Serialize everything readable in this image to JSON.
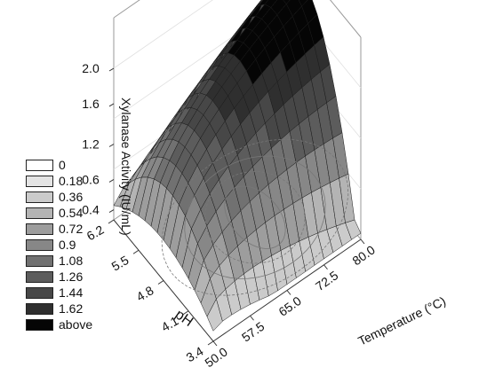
{
  "chart_data": {
    "type": "surface",
    "zlabel": "Xylanase Activity (IU/mL)",
    "xlabel": "Temperature (°C)",
    "ylabel": "pH",
    "x_ticks": [
      "50.0",
      "57.5",
      "65.0",
      "72.5",
      "80.0"
    ],
    "y_ticks": [
      "3.4",
      "4.1",
      "4.8",
      "5.5",
      "6.2"
    ],
    "z_ticks": [
      "0.4",
      "0.6",
      "1.2",
      "1.6",
      "2.0"
    ],
    "xlim": [
      50.0,
      80.0
    ],
    "ylim": [
      3.4,
      6.2
    ],
    "zlim": [
      0.3,
      2.3
    ],
    "legend": {
      "placement": "left",
      "items": [
        {
          "label": "0",
          "color": "#ffffff"
        },
        {
          "label": "0.18",
          "color": "#e4e4e4"
        },
        {
          "label": "0.36",
          "color": "#cbcbcb"
        },
        {
          "label": "0.54",
          "color": "#b4b4b4"
        },
        {
          "label": "0.72",
          "color": "#9d9d9d"
        },
        {
          "label": "0.9",
          "color": "#878787"
        },
        {
          "label": "1.08",
          "color": "#717171"
        },
        {
          "label": "1.26",
          "color": "#5c5c5c"
        },
        {
          "label": "1.44",
          "color": "#474747"
        },
        {
          "label": "1.62",
          "color": "#2f2f2f"
        },
        {
          "label": "above",
          "color": "#050505"
        }
      ]
    },
    "surface": {
      "description_points": [
        {
          "temperature": 50.0,
          "pH": 6.2,
          "activity": 0.4
        },
        {
          "temperature": 50.0,
          "pH": 4.8,
          "activity": 0.7
        },
        {
          "temperature": 50.0,
          "pH": 3.4,
          "activity": 0.4
        },
        {
          "temperature": 65.0,
          "pH": 4.8,
          "activity": 1.5
        },
        {
          "temperature": 80.0,
          "pH": 6.2,
          "activity": 0.8
        },
        {
          "temperature": 80.0,
          "pH": 4.8,
          "activity": 2.2
        },
        {
          "temperature": 80.0,
          "pH": 3.4,
          "activity": 1.2
        }
      ],
      "grid_lines": 16
    }
  }
}
